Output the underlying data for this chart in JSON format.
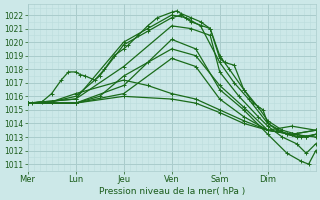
{
  "bg_color": "#cce8e8",
  "grid_major_color": "#aacccc",
  "grid_minor_color": "#bbdddd",
  "line_color": "#1a6b1a",
  "xlabel_text": "Pression niveau de la mer( hPa )",
  "ylim": [
    1010.5,
    1022.8
  ],
  "yticks": [
    1011,
    1012,
    1013,
    1014,
    1015,
    1016,
    1017,
    1018,
    1019,
    1020,
    1021,
    1022
  ],
  "xlim": [
    0,
    6.0
  ],
  "xtick_labels": [
    "Mer",
    "Lun",
    "Jeu",
    "Ven",
    "Sam",
    "Dim"
  ],
  "xtick_positions": [
    0,
    1,
    2,
    3,
    4,
    5
  ],
  "lines": [
    [
      0.0,
      1015.5,
      0.1,
      1015.5,
      0.3,
      1015.6,
      0.5,
      1016.2,
      0.7,
      1017.2,
      0.85,
      1017.8,
      1.0,
      1017.8,
      1.1,
      1017.6,
      1.2,
      1017.5,
      1.4,
      1017.2,
      1.6,
      1018.0,
      1.8,
      1019.0,
      2.0,
      1019.5,
      2.1,
      1019.8,
      2.3,
      1020.5,
      2.5,
      1021.2,
      2.7,
      1021.8,
      3.0,
      1022.2,
      3.1,
      1022.3,
      3.2,
      1022.1,
      3.4,
      1021.8,
      3.6,
      1021.5,
      3.8,
      1021.0,
      4.0,
      1018.8,
      4.1,
      1018.5,
      4.3,
      1018.3,
      4.5,
      1016.5,
      4.7,
      1015.5,
      4.9,
      1015.0,
      5.0,
      1014.0,
      5.2,
      1013.5,
      5.4,
      1013.2,
      5.6,
      1013.0,
      5.8,
      1013.0,
      6.0,
      1013.2
    ],
    [
      0.0,
      1015.5,
      0.5,
      1015.6,
      1.0,
      1016.0,
      1.5,
      1017.5,
      2.0,
      1019.8,
      2.5,
      1020.8,
      3.0,
      1021.8,
      3.2,
      1022.0,
      3.4,
      1021.5,
      3.8,
      1021.0,
      4.0,
      1019.0,
      4.2,
      1018.0,
      4.5,
      1016.5,
      4.8,
      1015.2,
      5.0,
      1014.2,
      5.3,
      1013.5,
      5.6,
      1013.2,
      5.8,
      1013.0,
      6.0,
      1013.2
    ],
    [
      0.0,
      1015.5,
      1.0,
      1015.8,
      2.0,
      1020.0,
      2.5,
      1021.0,
      3.0,
      1022.0,
      3.3,
      1021.8,
      3.6,
      1021.2,
      4.0,
      1018.5,
      4.3,
      1017.0,
      4.6,
      1015.8,
      5.0,
      1014.0,
      5.4,
      1013.2,
      5.7,
      1013.0,
      6.0,
      1013.2
    ],
    [
      0.0,
      1015.5,
      1.0,
      1015.8,
      2.0,
      1018.2,
      3.0,
      1021.2,
      3.4,
      1021.0,
      3.8,
      1020.5,
      4.0,
      1017.8,
      4.4,
      1016.0,
      4.8,
      1014.5,
      5.0,
      1013.8,
      5.3,
      1013.0,
      5.6,
      1012.5,
      5.8,
      1011.8,
      6.0,
      1012.5
    ],
    [
      0.0,
      1015.5,
      1.0,
      1015.5,
      2.0,
      1016.8,
      3.0,
      1020.2,
      3.5,
      1019.5,
      4.0,
      1016.5,
      4.5,
      1015.0,
      5.0,
      1013.2,
      5.4,
      1011.8,
      5.7,
      1011.2,
      5.85,
      1011.0,
      6.0,
      1012.0
    ],
    [
      0.0,
      1015.5,
      1.0,
      1015.5,
      2.0,
      1016.2,
      3.0,
      1018.8,
      3.5,
      1018.2,
      4.0,
      1015.8,
      4.5,
      1014.5,
      5.0,
      1013.5,
      5.5,
      1013.2,
      6.0,
      1013.5
    ],
    [
      0.0,
      1015.5,
      1.0,
      1015.5,
      1.5,
      1016.0,
      2.0,
      1017.5,
      2.5,
      1018.5,
      3.0,
      1019.5,
      3.5,
      1019.0,
      4.0,
      1016.8,
      4.5,
      1015.2,
      5.0,
      1013.5,
      5.5,
      1013.8,
      6.0,
      1013.5
    ],
    [
      0.0,
      1015.5,
      0.5,
      1015.6,
      1.0,
      1016.2,
      2.0,
      1017.2,
      2.5,
      1016.8,
      3.0,
      1016.2,
      3.5,
      1015.8,
      4.0,
      1015.0,
      4.5,
      1014.2,
      5.0,
      1013.5,
      5.5,
      1013.2,
      6.0,
      1013.5
    ],
    [
      0.0,
      1015.5,
      1.0,
      1015.5,
      2.0,
      1016.0,
      3.0,
      1015.8,
      3.5,
      1015.5,
      4.0,
      1014.8,
      4.5,
      1014.0,
      5.0,
      1013.5,
      5.5,
      1013.2,
      6.0,
      1013.0
    ]
  ]
}
